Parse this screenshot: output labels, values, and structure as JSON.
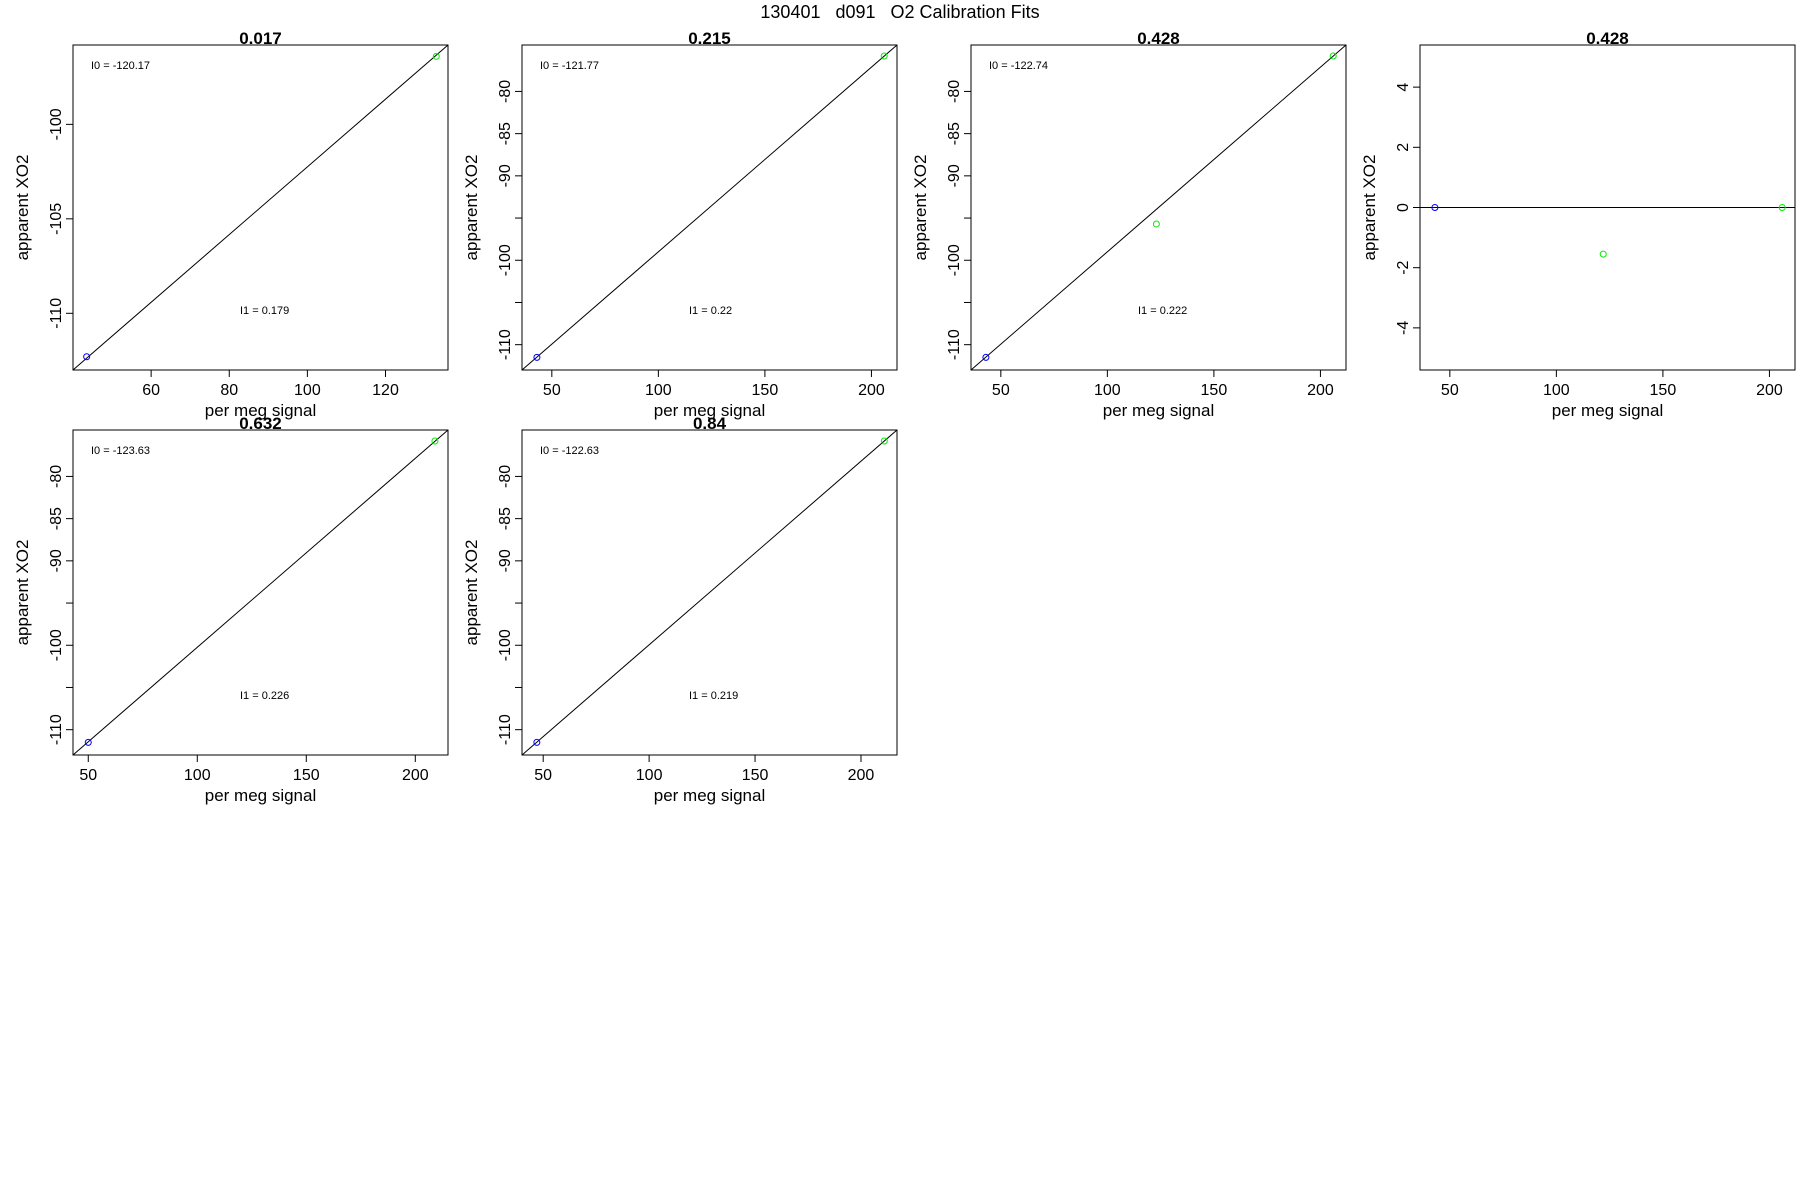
{
  "title": "130401   d091   O2 Calibration Fits",
  "chart_data": [
    {
      "type": "scatter",
      "title": "0.017",
      "xlabel": "per meg signal",
      "ylabel": "apparent XO2",
      "xlim": [
        40,
        136
      ],
      "ylim": [
        -113,
        -95.8
      ],
      "xticks": [
        60,
        80,
        100,
        120
      ],
      "yticks": [
        -100,
        -105,
        -110
      ],
      "yminor": [],
      "points": [
        {
          "x": 43.5,
          "y": -112.3,
          "color": "#0000ff"
        },
        {
          "x": 133,
          "y": -96.4,
          "color": "#00ee00"
        }
      ],
      "fit_line": {
        "x0": 40,
        "y0": -113,
        "x1": 136,
        "y1": -95.8
      },
      "annotation_i0": "I0 =  -120.17",
      "annotation_i1": "I1 =  0.179"
    },
    {
      "type": "scatter",
      "title": "0.215",
      "xlabel": "per meg signal",
      "ylabel": "apparent XO2",
      "xlim": [
        36,
        212
      ],
      "ylim": [
        -113,
        -74.5
      ],
      "xticks": [
        50,
        100,
        150,
        200
      ],
      "yticks": [
        -80,
        -85,
        -90,
        -100,
        -110
      ],
      "yminor": [
        -95,
        -105
      ],
      "points": [
        {
          "x": 43,
          "y": -111.5,
          "color": "#0000ff"
        },
        {
          "x": 206,
          "y": -75.8,
          "color": "#00ee00"
        }
      ],
      "fit_line": {
        "x0": 36,
        "y0": -113,
        "x1": 212,
        "y1": -74.5
      },
      "annotation_i0": "I0 =  -121.77",
      "annotation_i1": "I1 =  0.22"
    },
    {
      "type": "scatter",
      "title": "0.428",
      "xlabel": "per meg signal",
      "ylabel": "apparent XO2",
      "xlim": [
        36,
        212
      ],
      "ylim": [
        -113,
        -74.5
      ],
      "xticks": [
        50,
        100,
        150,
        200
      ],
      "yticks": [
        -80,
        -85,
        -90,
        -100,
        -110
      ],
      "yminor": [
        -95,
        -105
      ],
      "points": [
        {
          "x": 43,
          "y": -111.5,
          "color": "#0000ff"
        },
        {
          "x": 123,
          "y": -95.7,
          "color": "#00ee00"
        },
        {
          "x": 206,
          "y": -75.8,
          "color": "#00ee00"
        }
      ],
      "fit_line": {
        "x0": 36,
        "y0": -113,
        "x1": 212,
        "y1": -74.5
      },
      "annotation_i0": "I0 =  -122.74",
      "annotation_i1": "I1 =  0.222"
    },
    {
      "type": "scatter",
      "title": "0.428",
      "xlabel": "per meg signal",
      "ylabel": "apparent XO2",
      "xlim": [
        36,
        212
      ],
      "ylim": [
        -5.4,
        5.4
      ],
      "xticks": [
        50,
        100,
        150,
        200
      ],
      "yticks": [
        4,
        2,
        0,
        -2,
        -4
      ],
      "yminor": [],
      "points": [
        {
          "x": 43,
          "y": 0,
          "color": "#0000ff"
        },
        {
          "x": 122,
          "y": -1.55,
          "color": "#00ee00"
        },
        {
          "x": 206,
          "y": 0,
          "color": "#00ee00"
        }
      ],
      "fit_line": {
        "x0": 36,
        "y0": 0,
        "x1": 212,
        "y1": 0
      },
      "annotation_i0": "",
      "annotation_i1": ""
    },
    {
      "type": "scatter",
      "title": "0.632",
      "xlabel": "per meg signal",
      "ylabel": "apparent XO2",
      "xlim": [
        43,
        215
      ],
      "ylim": [
        -113,
        -74.5
      ],
      "xticks": [
        50,
        100,
        150,
        200
      ],
      "yticks": [
        -80,
        -85,
        -90,
        -100,
        -110
      ],
      "yminor": [
        -95,
        -105
      ],
      "points": [
        {
          "x": 50,
          "y": -111.5,
          "color": "#0000ff"
        },
        {
          "x": 209,
          "y": -75.8,
          "color": "#00ee00"
        }
      ],
      "fit_line": {
        "x0": 43,
        "y0": -113,
        "x1": 215,
        "y1": -74.5
      },
      "annotation_i0": "I0 =  -123.63",
      "annotation_i1": "I1 =  0.226"
    },
    {
      "type": "scatter",
      "title": "0.84",
      "xlabel": "per meg signal",
      "ylabel": "apparent XO2",
      "xlim": [
        40,
        217
      ],
      "ylim": [
        -113,
        -74.5
      ],
      "xticks": [
        50,
        100,
        150,
        200
      ],
      "yticks": [
        -80,
        -85,
        -90,
        -100,
        -110
      ],
      "yminor": [
        -95,
        -105
      ],
      "points": [
        {
          "x": 47,
          "y": -111.5,
          "color": "#0000ff"
        },
        {
          "x": 211,
          "y": -75.8,
          "color": "#00ee00"
        }
      ],
      "fit_line": {
        "x0": 40,
        "y0": -113,
        "x1": 217,
        "y1": -74.5
      },
      "annotation_i0": "I0 =  -122.63",
      "annotation_i1": "I1 =  0.219"
    }
  ]
}
